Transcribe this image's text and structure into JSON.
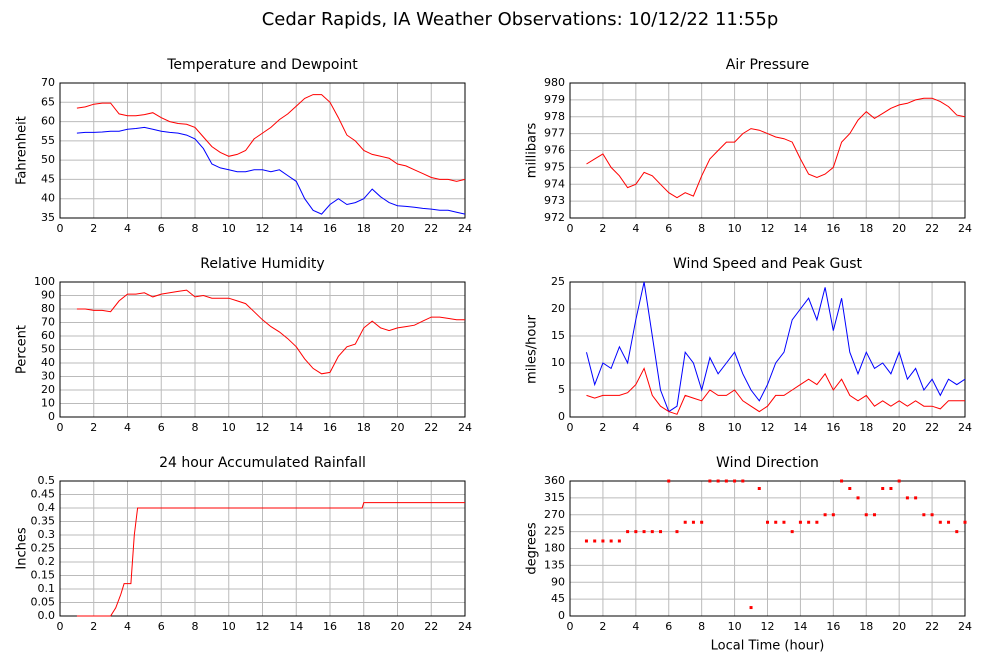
{
  "title": "Cedar Rapids, IA Weather Observations: 10/12/22 11:55p",
  "chart_data": [
    {
      "type": "line",
      "title": "Temperature and Dewpoint",
      "ylabel": "Fahrenheit",
      "x": [
        1,
        1.5,
        2,
        2.5,
        3,
        3.5,
        4,
        4.5,
        5,
        5.5,
        6,
        6.5,
        7,
        7.5,
        8,
        8.5,
        9,
        9.5,
        10,
        10.5,
        11,
        11.5,
        12,
        12.5,
        13,
        13.5,
        14,
        14.5,
        15,
        15.5,
        16,
        16.5,
        17,
        17.5,
        18,
        18.5,
        19,
        19.5,
        20,
        20.5,
        21,
        21.5,
        22,
        22.5,
        23,
        23.5,
        24
      ],
      "series": [
        {
          "color": "#ff0000",
          "values": [
            63.5,
            63.8,
            64.5,
            64.8,
            64.8,
            62,
            61.5,
            61.5,
            61.8,
            62.3,
            61,
            60,
            59.5,
            59.3,
            58.5,
            56,
            53.5,
            52,
            51,
            51.5,
            52.5,
            55.5,
            57,
            58.5,
            60.5,
            62,
            64,
            66,
            67,
            67,
            65,
            61,
            56.5,
            55,
            52.5,
            51.5,
            51,
            50.5,
            49,
            48.5,
            47.5,
            46.5,
            45.5,
            45,
            45,
            44.5,
            45
          ]
        },
        {
          "color": "#0000ff",
          "values": [
            57,
            57.2,
            57.2,
            57.3,
            57.5,
            57.5,
            58,
            58.2,
            58.5,
            58,
            57.5,
            57.2,
            57,
            56.5,
            55.5,
            53,
            49,
            48,
            47.5,
            47,
            47,
            47.5,
            47.5,
            47,
            47.5,
            46,
            44.5,
            40,
            37,
            36,
            38.5,
            40,
            38.5,
            39,
            40,
            42.5,
            40.5,
            39,
            38.2,
            38,
            37.8,
            37.5,
            37.3,
            37,
            37,
            36.5,
            36
          ]
        }
      ],
      "xlim": [
        0,
        24
      ],
      "xticks": [
        0,
        2,
        4,
        6,
        8,
        10,
        12,
        14,
        16,
        18,
        20,
        22,
        24
      ],
      "ylim": [
        35,
        70
      ],
      "yticks": [
        35,
        40,
        45,
        50,
        55,
        60,
        65,
        70
      ],
      "grid": true
    },
    {
      "type": "line",
      "title": "Air Pressure",
      "ylabel": "millibars",
      "x": [
        1,
        1.5,
        2,
        2.5,
        3,
        3.5,
        4,
        4.5,
        5,
        5.5,
        6,
        6.5,
        7,
        7.5,
        8,
        8.5,
        9,
        9.5,
        10,
        10.5,
        11,
        11.5,
        12,
        12.5,
        13,
        13.5,
        14,
        14.5,
        15,
        15.5,
        16,
        16.5,
        17,
        17.5,
        18,
        18.5,
        19,
        19.5,
        20,
        20.5,
        21,
        21.5,
        22,
        22.5,
        23,
        23.5,
        24
      ],
      "series": [
        {
          "color": "#ff0000",
          "values": [
            975.2,
            975.5,
            975.8,
            975,
            974.5,
            973.8,
            974,
            974.7,
            974.5,
            974,
            973.5,
            973.2,
            973.5,
            973.3,
            974.5,
            975.5,
            976,
            976.5,
            976.5,
            977,
            977.3,
            977.2,
            977,
            976.8,
            976.7,
            976.5,
            975.5,
            974.6,
            974.4,
            974.6,
            975,
            976.5,
            977,
            977.8,
            978.3,
            977.9,
            978.2,
            978.5,
            978.7,
            978.8,
            979,
            979.1,
            979.1,
            978.9,
            978.6,
            978.1,
            978
          ]
        }
      ],
      "xlim": [
        0,
        24
      ],
      "xticks": [
        0,
        2,
        4,
        6,
        8,
        10,
        12,
        14,
        16,
        18,
        20,
        22,
        24
      ],
      "ylim": [
        972,
        980
      ],
      "yticks": [
        972,
        973,
        974,
        975,
        976,
        977,
        978,
        979,
        980
      ],
      "grid": true
    },
    {
      "type": "line",
      "title": "Relative Humidity",
      "ylabel": "Percent",
      "x": [
        1,
        1.5,
        2,
        2.5,
        3,
        3.5,
        4,
        4.5,
        5,
        5.5,
        6,
        6.5,
        7,
        7.5,
        8,
        8.5,
        9,
        9.5,
        10,
        10.5,
        11,
        11.5,
        12,
        12.5,
        13,
        13.5,
        14,
        14.5,
        15,
        15.5,
        16,
        16.5,
        17,
        17.5,
        18,
        18.5,
        19,
        19.5,
        20,
        20.5,
        21,
        21.5,
        22,
        22.5,
        23,
        23.5,
        24
      ],
      "series": [
        {
          "color": "#ff0000",
          "values": [
            80,
            80,
            79,
            79,
            78,
            86,
            91,
            91,
            92,
            89,
            91,
            92,
            93,
            94,
            89,
            90,
            88,
            88,
            88,
            86,
            84,
            78,
            72,
            67,
            63,
            58,
            52,
            43,
            36,
            32,
            33,
            45,
            52,
            54,
            66,
            71,
            66,
            64,
            66,
            67,
            68,
            71,
            74,
            74,
            73,
            72,
            72
          ]
        }
      ],
      "xlim": [
        0,
        24
      ],
      "xticks": [
        0,
        2,
        4,
        6,
        8,
        10,
        12,
        14,
        16,
        18,
        20,
        22,
        24
      ],
      "ylim": [
        0,
        100
      ],
      "yticks": [
        0,
        10,
        20,
        30,
        40,
        50,
        60,
        70,
        80,
        90,
        100
      ],
      "grid": true
    },
    {
      "type": "line",
      "title": "Wind Speed and Peak Gust",
      "ylabel": "miles/hour",
      "x": [
        1,
        1.5,
        2,
        2.5,
        3,
        3.5,
        4,
        4.5,
        5,
        5.5,
        6,
        6.5,
        7,
        7.5,
        8,
        8.5,
        9,
        9.5,
        10,
        10.5,
        11,
        11.5,
        12,
        12.5,
        13,
        13.5,
        14,
        14.5,
        15,
        15.5,
        16,
        16.5,
        17,
        17.5,
        18,
        18.5,
        19,
        19.5,
        20,
        20.5,
        21,
        21.5,
        22,
        22.5,
        23,
        23.5,
        24
      ],
      "series": [
        {
          "color": "#0000ff",
          "values": [
            12,
            6,
            10,
            9,
            13,
            10,
            18,
            25,
            15,
            5,
            1,
            2,
            12,
            10,
            5,
            11,
            8,
            10,
            12,
            8,
            5,
            3,
            6,
            10,
            12,
            18,
            20,
            22,
            18,
            24,
            16,
            22,
            12,
            8,
            12,
            9,
            10,
            8,
            12,
            7,
            9,
            5,
            7,
            4,
            7,
            6,
            7
          ]
        },
        {
          "color": "#ff0000",
          "values": [
            4,
            3.5,
            4,
            4,
            4,
            4.5,
            6,
            9,
            4,
            2,
            1,
            0.5,
            4,
            3.5,
            3,
            5,
            4,
            4,
            5,
            3,
            2,
            1,
            2,
            4,
            4,
            5,
            6,
            7,
            6,
            8,
            5,
            7,
            4,
            3,
            4,
            2,
            3,
            2,
            3,
            2,
            3,
            2,
            2,
            1.5,
            3,
            3,
            3
          ]
        }
      ],
      "xlim": [
        0,
        24
      ],
      "xticks": [
        0,
        2,
        4,
        6,
        8,
        10,
        12,
        14,
        16,
        18,
        20,
        22,
        24
      ],
      "ylim": [
        0,
        25
      ],
      "yticks": [
        0,
        5,
        10,
        15,
        20,
        25
      ],
      "grid": true
    },
    {
      "type": "line",
      "title": "24 hour Accumulated Rainfall",
      "ylabel": "Inches",
      "x": [
        1,
        2,
        3,
        3.3,
        3.6,
        3.8,
        4.2,
        4.4,
        4.6,
        10,
        17.9,
        18,
        24
      ],
      "series": [
        {
          "color": "#ff0000",
          "values": [
            0,
            0,
            0,
            0.03,
            0.08,
            0.12,
            0.12,
            0.3,
            0.4,
            0.4,
            0.4,
            0.42,
            0.42
          ]
        }
      ],
      "xlim": [
        0,
        24
      ],
      "xticks": [
        0,
        2,
        4,
        6,
        8,
        10,
        12,
        14,
        16,
        18,
        20,
        22,
        24
      ],
      "ylim": [
        0,
        0.5
      ],
      "yticks": [
        {
          "value": 0,
          "label": "0.0"
        },
        0.05,
        0.1,
        0.15,
        0.2,
        0.25,
        0.3,
        0.35,
        0.4,
        0.45,
        0.5
      ],
      "grid": true
    },
    {
      "type": "scatter",
      "title": "Wind Direction",
      "ylabel": "degrees",
      "xlabel": "Local Time (hour)",
      "x": [
        1,
        1.5,
        2,
        2.5,
        3,
        3.5,
        4,
        4.5,
        5,
        5.5,
        6,
        6.5,
        7,
        7.5,
        8,
        8.5,
        9,
        9.5,
        10,
        10.5,
        11,
        11.5,
        12,
        12.5,
        13,
        13.5,
        14,
        14.5,
        15,
        15.5,
        16,
        16.5,
        17,
        17.5,
        18,
        18.5,
        19,
        19.5,
        20,
        20.5,
        21,
        21.5,
        22,
        22.5,
        23,
        23.5,
        24
      ],
      "series": [
        {
          "color": "#ff0000",
          "values": [
            200,
            200,
            200,
            200,
            200,
            225,
            225,
            225,
            225,
            225,
            360,
            225,
            250,
            250,
            250,
            360,
            360,
            360,
            360,
            360,
            22.5,
            340,
            250,
            250,
            250,
            225,
            250,
            250,
            250,
            270,
            270,
            360,
            340,
            315,
            270,
            270,
            340,
            340,
            360,
            315,
            315,
            270,
            270,
            250,
            250,
            225,
            250
          ]
        }
      ],
      "xlim": [
        0,
        24
      ],
      "xticks": [
        0,
        2,
        4,
        6,
        8,
        10,
        12,
        14,
        16,
        18,
        20,
        22,
        24
      ],
      "ylim": [
        0,
        360
      ],
      "yticks": [
        0,
        45,
        90,
        135,
        180,
        225,
        270,
        315,
        360
      ],
      "grid": true
    }
  ]
}
